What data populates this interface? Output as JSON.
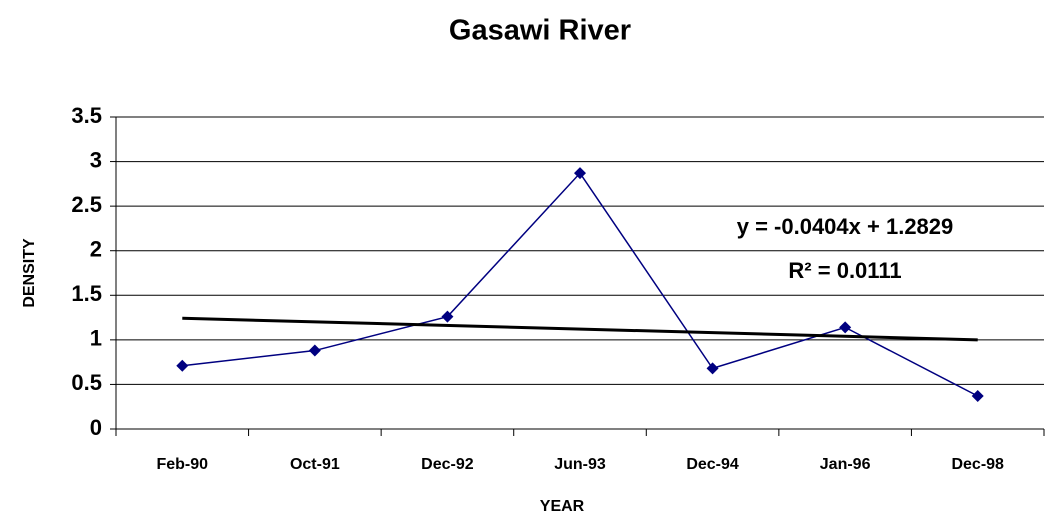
{
  "chart_data": {
    "type": "line",
    "title": "Gasawi River",
    "xlabel": "YEAR",
    "ylabel": "DENSITY",
    "categories": [
      "Feb-90",
      "Oct-91",
      "Dec-92",
      "Jun-93",
      "Dec-94",
      "Jan-96",
      "Dec-98"
    ],
    "series": [
      {
        "name": "Gasawi River",
        "color": "#000080",
        "values": [
          0.71,
          0.88,
          1.26,
          2.87,
          0.68,
          1.14,
          0.37
        ]
      }
    ],
    "ylim": [
      0,
      3.5
    ],
    "yticks": [
      0,
      0.5,
      1,
      1.5,
      2,
      2.5,
      3,
      3.5
    ],
    "grid": true,
    "trendline": {
      "slope": -0.0404,
      "intercept": 1.2829,
      "color": "#000000",
      "equation": "y = -0.0404x + 1.2829",
      "r_squared": "R² = 0.0111"
    }
  }
}
